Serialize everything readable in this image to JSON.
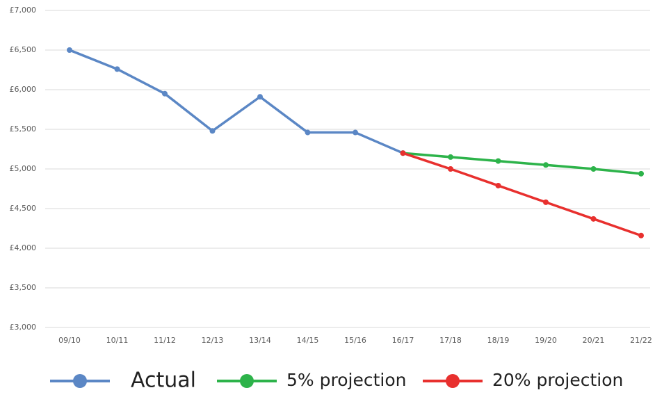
{
  "chart_data": {
    "type": "line",
    "categories": [
      "09/10",
      "10/11",
      "11/12",
      "12/13",
      "13/14",
      "14/15",
      "15/16",
      "16/17",
      "17/18",
      "18/19",
      "19/20",
      "20/21",
      "21/22"
    ],
    "series": [
      {
        "name": "Actual",
        "color": "#5b87c5",
        "values": [
          6500,
          6260,
          5950,
          5480,
          5910,
          5460,
          5460,
          5200,
          null,
          null,
          null,
          null,
          null
        ]
      },
      {
        "name": "5% projection",
        "color": "#2db34a",
        "values": [
          null,
          null,
          null,
          null,
          null,
          null,
          null,
          5200,
          5150,
          5100,
          5050,
          5000,
          4940
        ]
      },
      {
        "name": "20% projection",
        "color": "#e8302e",
        "values": [
          null,
          null,
          null,
          null,
          null,
          null,
          null,
          5200,
          5000,
          4790,
          4580,
          4370,
          4160
        ]
      }
    ],
    "ylim": [
      3000,
      7000
    ],
    "yticks": [
      {
        "value": 3000,
        "label": "£3,000"
      },
      {
        "value": 3500,
        "label": "£3,500"
      },
      {
        "value": 4000,
        "label": "£4,000"
      },
      {
        "value": 4500,
        "label": "£4,500"
      },
      {
        "value": 5000,
        "label": "£5,000"
      },
      {
        "value": 5500,
        "label": "£5,500"
      },
      {
        "value": 6000,
        "label": "£6,000"
      },
      {
        "value": 6500,
        "label": "£6,500"
      },
      {
        "value": 7000,
        "label": "£7,000"
      }
    ],
    "grid": true,
    "legend": "bottom"
  }
}
